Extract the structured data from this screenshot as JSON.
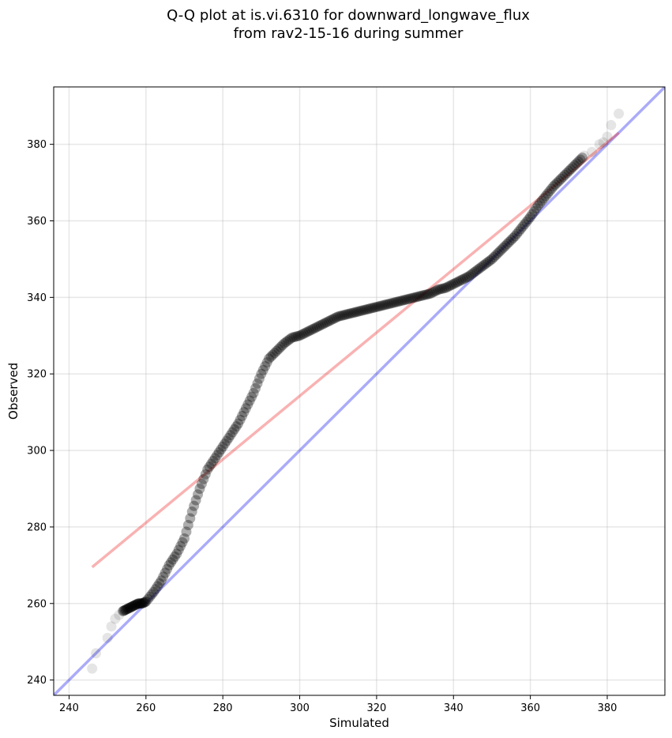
{
  "chart_data": {
    "type": "scatter",
    "title_line1": "Q-Q plot at is.vi.6310 for downward_longwave_flux",
    "title_line2": "from rav2-15-16 during summer",
    "xlabel": "Simulated",
    "ylabel": "Observed",
    "xlim": [
      236,
      395
    ],
    "ylim": [
      236,
      395
    ],
    "xticks": [
      240,
      260,
      280,
      300,
      320,
      340,
      360,
      380
    ],
    "yticks": [
      240,
      260,
      280,
      300,
      320,
      340,
      360,
      380
    ],
    "grid": true,
    "legend": "none",
    "reference_line": {
      "description": "1:1 line",
      "color": "#0000ee",
      "x": [
        236,
        395
      ],
      "y": [
        236,
        395
      ]
    },
    "fit_line": {
      "description": "linear fit",
      "color": "#ee2222",
      "x": [
        246,
        383
      ],
      "y": [
        269.5,
        383
      ]
    },
    "quantile_points": {
      "color": "#000000",
      "x": [
        246,
        247,
        250,
        251,
        252,
        253,
        254,
        255,
        256,
        257,
        258,
        259,
        260,
        262,
        264,
        266,
        268,
        270,
        272,
        274,
        276,
        278,
        280,
        282,
        284,
        286,
        288,
        290,
        292,
        294,
        296,
        298,
        300,
        302,
        304,
        306,
        308,
        310,
        312,
        314,
        316,
        318,
        320,
        322,
        324,
        326,
        328,
        330,
        332,
        334,
        336,
        338,
        340,
        342,
        344,
        346,
        348,
        350,
        352,
        354,
        356,
        358,
        360,
        362,
        364,
        366,
        368,
        370,
        372,
        374,
        376,
        378,
        379,
        380,
        381,
        383
      ],
      "y": [
        243,
        247,
        251,
        254,
        256,
        257,
        258,
        258.5,
        259,
        259.5,
        260,
        260,
        260.5,
        263,
        266,
        270,
        273,
        277,
        284,
        290,
        295,
        298,
        301,
        304,
        307,
        311,
        315,
        320,
        324,
        326,
        328,
        329.5,
        330,
        331,
        332,
        333,
        334,
        335,
        335.5,
        336,
        336.5,
        337,
        337.5,
        338,
        338.5,
        339,
        339.5,
        340,
        340.5,
        341,
        342,
        342.5,
        343.5,
        344.5,
        345.5,
        347,
        348.5,
        350,
        352,
        354,
        356,
        358.5,
        361,
        364,
        366.5,
        369,
        371,
        373,
        375,
        377,
        378,
        380,
        380.5,
        382,
        385,
        388
      ]
    }
  }
}
